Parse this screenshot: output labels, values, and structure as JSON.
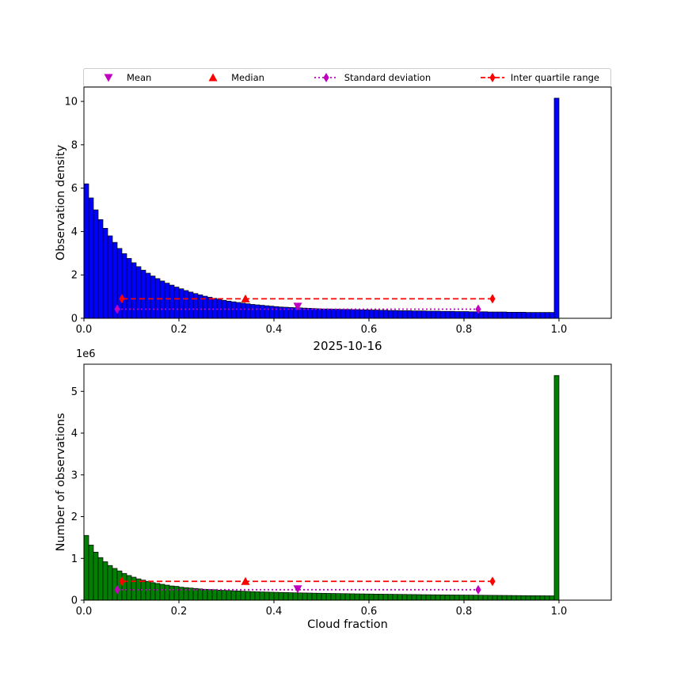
{
  "title": "2025-10-16",
  "colors": {
    "mean_std": "#bf00bf",
    "median_iqr": "#ff0000"
  },
  "legend": {
    "entries": [
      {
        "label": "Mean",
        "marker": "triangle-down",
        "color": "#bf00bf",
        "linestyle": "none"
      },
      {
        "label": "Median",
        "marker": "triangle-up",
        "color": "#ff0000",
        "linestyle": "none"
      },
      {
        "label": "Standard deviation",
        "marker": "diamond",
        "color": "#bf00bf",
        "linestyle": "dotted"
      },
      {
        "label": "Inter quartile range",
        "marker": "diamond",
        "color": "#ff0000",
        "linestyle": "dashed"
      }
    ]
  },
  "chart_data": [
    {
      "type": "bar",
      "panel_name": "observation-density-histogram",
      "ylabel": "Observation density",
      "xlabel": "",
      "color": "#0000ff",
      "bin_width": 0.01,
      "xlim": [
        0,
        1.11
      ],
      "ylim": [
        0,
        10.66
      ],
      "xtick_values": [
        0,
        0.2,
        0.4,
        0.6,
        0.8,
        1.0
      ],
      "xtick_labels": [
        "0.0",
        "0.2",
        "0.4",
        "0.6",
        "0.8",
        "1.0"
      ],
      "ytick_values": [
        0,
        2,
        4,
        6,
        8,
        10
      ],
      "ytick_labels": [
        "0",
        "2",
        "4",
        "6",
        "8",
        "10"
      ],
      "values": [
        6.2,
        5.55,
        5.0,
        4.55,
        4.15,
        3.8,
        3.5,
        3.22,
        2.98,
        2.76,
        2.56,
        2.38,
        2.22,
        2.08,
        1.95,
        1.83,
        1.72,
        1.62,
        1.53,
        1.44,
        1.36,
        1.28,
        1.21,
        1.14,
        1.08,
        1.02,
        0.97,
        0.92,
        0.87,
        0.83,
        0.79,
        0.76,
        0.73,
        0.7,
        0.67,
        0.64,
        0.62,
        0.6,
        0.58,
        0.56,
        0.54,
        0.52,
        0.51,
        0.5,
        0.49,
        0.48,
        0.47,
        0.46,
        0.45,
        0.44,
        0.43,
        0.43,
        0.42,
        0.42,
        0.41,
        0.41,
        0.4,
        0.4,
        0.39,
        0.39,
        0.38,
        0.38,
        0.37,
        0.37,
        0.36,
        0.36,
        0.35,
        0.35,
        0.35,
        0.34,
        0.34,
        0.34,
        0.33,
        0.33,
        0.33,
        0.32,
        0.32,
        0.32,
        0.31,
        0.31,
        0.31,
        0.3,
        0.3,
        0.3,
        0.3,
        0.29,
        0.29,
        0.29,
        0.29,
        0.28,
        0.28,
        0.28,
        0.28,
        0.27,
        0.27,
        0.27,
        0.27,
        0.27,
        0.27,
        10.15
      ],
      "markers": {
        "mean": {
          "x": 0.45,
          "y": 0.55
        },
        "median": {
          "x": 0.34,
          "y": 0.9
        },
        "std": {
          "x1": 0.07,
          "x2": 0.83,
          "y": 0.42
        },
        "iqr": {
          "x1": 0.08,
          "x2": 0.86,
          "y": 0.9
        }
      }
    },
    {
      "type": "bar",
      "panel_name": "observation-count-histogram",
      "ylabel": "Number of observations",
      "xlabel": "Cloud fraction",
      "y_offset_text": "1e6",
      "color": "#008000",
      "bin_width": 0.01,
      "xlim": [
        0,
        1.11
      ],
      "ylim": [
        0,
        5.65
      ],
      "xtick_values": [
        0,
        0.2,
        0.4,
        0.6,
        0.8,
        1.0
      ],
      "xtick_labels": [
        "0.0",
        "0.2",
        "0.4",
        "0.6",
        "0.8",
        "1.0"
      ],
      "ytick_values": [
        0,
        1,
        2,
        3,
        4,
        5
      ],
      "ytick_labels": [
        "0",
        "1",
        "2",
        "3",
        "4",
        "5"
      ],
      "values": [
        1.55,
        1.32,
        1.15,
        1.02,
        0.92,
        0.83,
        0.76,
        0.7,
        0.64,
        0.59,
        0.55,
        0.51,
        0.48,
        0.45,
        0.42,
        0.4,
        0.38,
        0.36,
        0.34,
        0.33,
        0.31,
        0.3,
        0.29,
        0.28,
        0.27,
        0.26,
        0.255,
        0.25,
        0.24,
        0.235,
        0.23,
        0.225,
        0.22,
        0.215,
        0.21,
        0.205,
        0.2,
        0.197,
        0.194,
        0.191,
        0.188,
        0.185,
        0.182,
        0.179,
        0.176,
        0.174,
        0.172,
        0.17,
        0.168,
        0.166,
        0.164,
        0.162,
        0.16,
        0.158,
        0.156,
        0.155,
        0.153,
        0.151,
        0.15,
        0.148,
        0.147,
        0.145,
        0.144,
        0.142,
        0.141,
        0.139,
        0.138,
        0.137,
        0.135,
        0.134,
        0.133,
        0.131,
        0.13,
        0.129,
        0.128,
        0.127,
        0.126,
        0.124,
        0.123,
        0.122,
        0.121,
        0.12,
        0.119,
        0.118,
        0.117,
        0.116,
        0.115,
        0.114,
        0.113,
        0.112,
        0.111,
        0.11,
        0.109,
        0.108,
        0.107,
        0.106,
        0.105,
        0.104,
        0.103,
        5.38
      ],
      "markers": {
        "mean": {
          "x": 0.45,
          "y": 0.27
        },
        "median": {
          "x": 0.34,
          "y": 0.45
        },
        "std": {
          "x1": 0.07,
          "x2": 0.83,
          "y": 0.25
        },
        "iqr": {
          "x1": 0.08,
          "x2": 0.86,
          "y": 0.45
        }
      }
    }
  ]
}
